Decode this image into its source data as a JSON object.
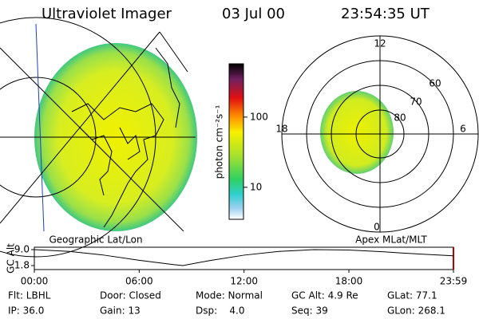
{
  "header": {
    "instrument": "Ultraviolet Imager",
    "date": "03 Jul 00",
    "time": "23:54:35 UT"
  },
  "left_panel": {
    "label": "Geographic Lat/Lon"
  },
  "right_panel": {
    "label": "Apex MLat/MLT",
    "mlt_labels": [
      "12",
      "18",
      "6",
      "0"
    ],
    "mlat_labels": [
      "60",
      "70",
      "80"
    ]
  },
  "colorbar": {
    "label": "photon cm⁻²s⁻¹",
    "log": true,
    "lim": [
      3.5,
      575
    ],
    "ticks": [
      10,
      100
    ]
  },
  "chart_data": {
    "type": "line",
    "ylabel": "GC Alt",
    "x": [
      0,
      2,
      4,
      6,
      8,
      8.5,
      10,
      12,
      14,
      16,
      18,
      20,
      22,
      23.983
    ],
    "values": [
      9.0,
      8.2,
      6.5,
      4.2,
      2.2,
      1.8,
      4.0,
      6.5,
      8.2,
      9.0,
      8.8,
      8.0,
      7.0,
      6.2
    ],
    "color": "#000000",
    "xlim": [
      0,
      23.983
    ],
    "xticks": [
      {
        "value": 0,
        "label": "00:00"
      },
      {
        "value": 6,
        "label": "06:00"
      },
      {
        "value": 12,
        "label": "12:00"
      },
      {
        "value": 18,
        "label": "18:00"
      },
      {
        "value": 23.983,
        "label": "23:59"
      }
    ],
    "ylim": [
      1.8,
      9.0
    ],
    "yticks": [
      {
        "value": 9.0,
        "label": "9.0"
      },
      {
        "value": 1.8,
        "label": "1.8"
      }
    ]
  },
  "footer": {
    "rows": [
      [
        "Flt: LBHL",
        "Door: Closed",
        "Mode: Normal",
        "GC Alt: 4.9 Re",
        "GLat: 77.1"
      ],
      [
        "IP: 36.0",
        "Gain: 13",
        "Dsp:    4.0",
        "Seq: 39",
        "GLon: 268.1"
      ]
    ]
  }
}
